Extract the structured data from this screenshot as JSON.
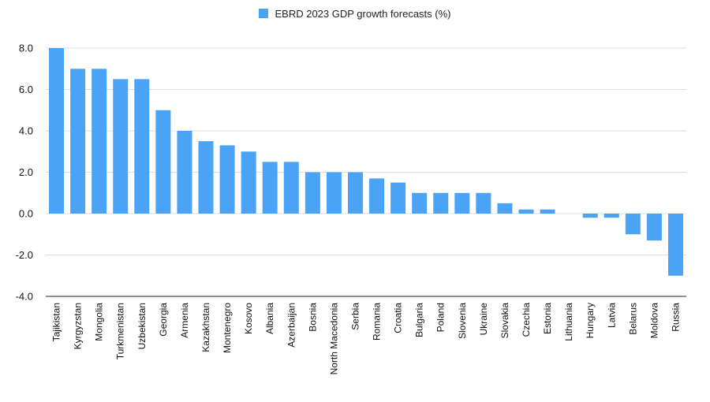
{
  "chart_data": {
    "type": "bar",
    "title": "",
    "xlabel": "",
    "ylabel": "",
    "legend": {
      "position": "top-center"
    },
    "grid": true,
    "ylim": [
      -4,
      8
    ],
    "yticks": [
      8,
      6,
      4,
      2,
      0,
      -2,
      -4
    ],
    "ytick_labels": [
      "8.0",
      "6.0",
      "4.0",
      "2.0",
      "0.0",
      "-2.0",
      "-4.0"
    ],
    "categories": [
      "Tajikistan",
      "Kyrgyzstan",
      "Mongolia",
      "Turkmenistan",
      "Uzbekistan",
      "Georgia",
      "Armenia",
      "Kazakhstan",
      "Montenegro",
      "Kosovo",
      "Albania",
      "Azerbaijan",
      "Bosnia",
      "North Macedonia",
      "Serbia",
      "Romania",
      "Croatia",
      "Bulgaria",
      "Poland",
      "Slovenia",
      "Ukraine",
      "Slovakia",
      "Czechia",
      "Estonia",
      "Lithuania",
      "Hungary",
      "Latvia",
      "Belarus",
      "Moldova",
      "Russia"
    ],
    "series": [
      {
        "name": "EBRD 2023 GDP growth forecasts (%)",
        "color": "#4aa3f5",
        "values": [
          8.0,
          7.0,
          7.0,
          6.5,
          6.5,
          5.0,
          4.0,
          3.5,
          3.3,
          3.0,
          2.5,
          2.5,
          2.0,
          2.0,
          2.0,
          1.7,
          1.5,
          1.0,
          1.0,
          1.0,
          1.0,
          0.5,
          0.2,
          0.2,
          0.0,
          -0.2,
          -0.2,
          -1.0,
          -1.3,
          -3.0
        ]
      }
    ]
  }
}
